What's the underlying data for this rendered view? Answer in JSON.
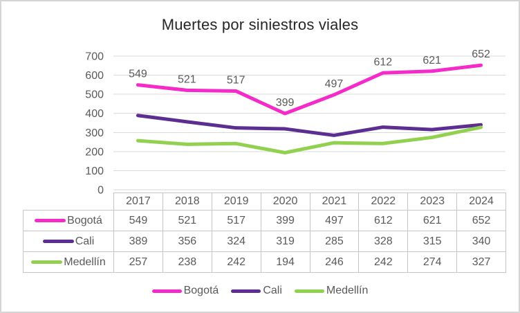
{
  "chart_data": {
    "type": "line",
    "title": "Muertes por siniestros viales",
    "categories": [
      "2017",
      "2018",
      "2019",
      "2020",
      "2021",
      "2022",
      "2023",
      "2024"
    ],
    "series": [
      {
        "name": "Bogotá",
        "color": "#F42BC9",
        "values": [
          549,
          521,
          517,
          399,
          497,
          612,
          621,
          652
        ],
        "data_labels": true
      },
      {
        "name": "Cali",
        "color": "#5C2E91",
        "values": [
          389,
          356,
          324,
          319,
          285,
          328,
          315,
          340
        ],
        "data_labels": false
      },
      {
        "name": "Medellín",
        "color": "#92D050",
        "values": [
          257,
          238,
          242,
          194,
          246,
          242,
          274,
          327
        ],
        "data_labels": false
      }
    ],
    "ylim": [
      0,
      700
    ],
    "ytick_step": 100,
    "yticks": [
      "0",
      "100",
      "200",
      "300",
      "400",
      "500",
      "600",
      "700"
    ],
    "grid": true,
    "legend_position": "bottom",
    "show_data_table": true,
    "colors": {
      "axis_text": "#595959",
      "gridline": "#D9D9D9",
      "table_border": "#C5C5C5",
      "title_text": "#262626",
      "frame_border": "#D5D5D5",
      "background": "#FFFFFF"
    }
  }
}
